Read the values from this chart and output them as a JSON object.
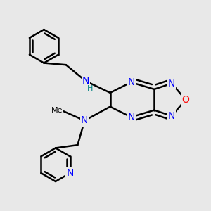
{
  "background_color": "#e8e8e8",
  "bond_color": "#000000",
  "bond_width": 1.8,
  "atom_colors": {
    "N": "#0000ff",
    "O": "#ff0000",
    "H_label": "#008080",
    "C": "#000000"
  },
  "font_size_atom": 10,
  "font_size_h": 8
}
